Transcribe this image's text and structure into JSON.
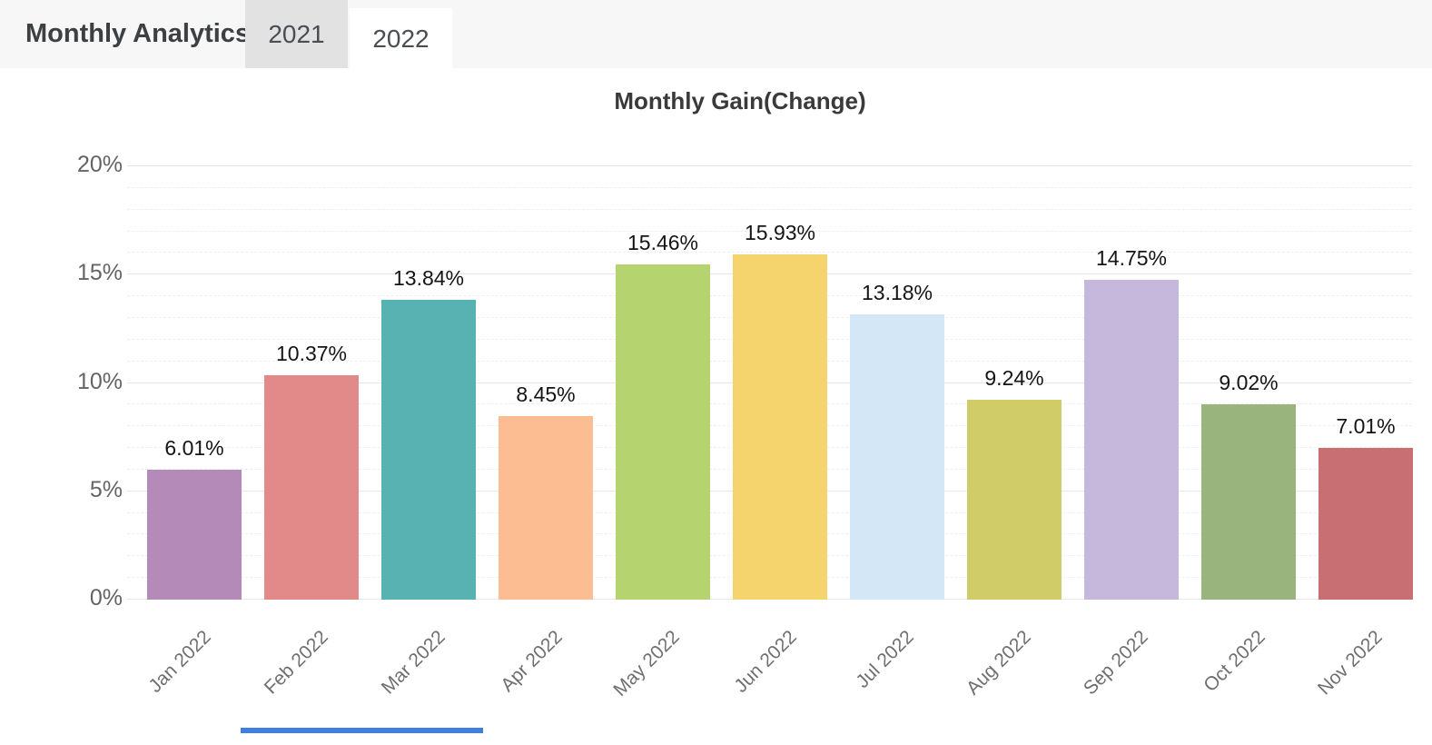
{
  "header": {
    "title": "Monthly Analytics",
    "tabs": [
      {
        "label": "2021",
        "active": false
      },
      {
        "label": "2022",
        "active": true
      }
    ]
  },
  "chart_data": {
    "type": "bar",
    "title": "Monthly Gain(Change)",
    "categories": [
      "Jan 2022",
      "Feb 2022",
      "Mar 2022",
      "Apr 2022",
      "May 2022",
      "Jun 2022",
      "Jul 2022",
      "Aug 2022",
      "Sep 2022",
      "Oct 2022",
      "Nov 2022"
    ],
    "values": [
      6.01,
      10.37,
      13.84,
      8.45,
      15.46,
      15.93,
      13.18,
      9.24,
      14.75,
      9.02,
      7.01
    ],
    "value_labels": [
      "6.01%",
      "10.37%",
      "13.84%",
      "8.45%",
      "15.46%",
      "15.93%",
      "13.18%",
      "9.24%",
      "14.75%",
      "9.02%",
      "7.01%"
    ],
    "bar_colors": [
      "#b48bb8",
      "#e28a8a",
      "#58b2b2",
      "#fcbd92",
      "#b5d36e",
      "#f5d46d",
      "#d4e7f7",
      "#d0cc68",
      "#c6b7dc",
      "#9ab47e",
      "#c76f72"
    ],
    "xlabel": "",
    "ylabel": "",
    "ylim": [
      0,
      20
    ],
    "y_ticks": [
      {
        "label": "0%",
        "value": 0
      },
      {
        "label": "5%",
        "value": 5
      },
      {
        "label": "10%",
        "value": 10
      },
      {
        "label": "15%",
        "value": 15
      },
      {
        "label": "20%",
        "value": 20
      }
    ],
    "grid": {
      "orientation": "horizontal",
      "major_interval": 5,
      "minor_interval": 1
    },
    "legend": "none"
  },
  "colors": {
    "header_bg": "#f7f7f7",
    "inactive_tab_bg": "#e2e2e2",
    "active_tab_bg": "#ffffff",
    "bottom_partial_bar": "#3e7fe0"
  }
}
